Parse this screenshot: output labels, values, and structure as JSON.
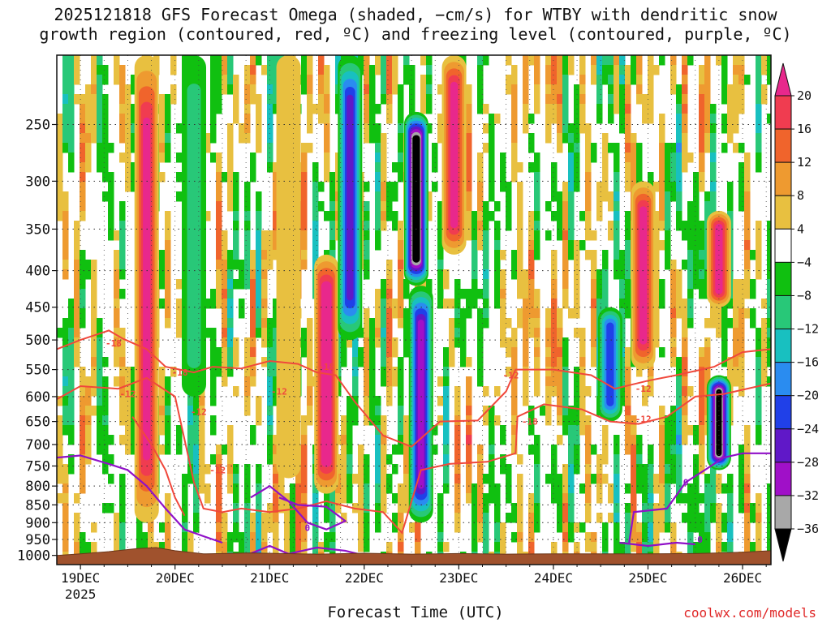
{
  "title_line1": "2025121818 GFS Forecast Omega (shaded, −cm/s) for WTBY with dendritic snow",
  "title_line2": "growth region (contoured, red, ºC) and freezing level (contoured, purple, ºC)",
  "credit": "coolwx.com/models",
  "chart_data": {
    "type": "heatmap",
    "title": "2025121818 GFS Forecast Omega (shaded, −cm/s) for WTBY with dendritic snow growth region (contoured, red, ºC) and freezing level (contoured, purple, ºC)",
    "xlabel": "Forecast Time (UTC)",
    "ylabel": "",
    "x_ticks": [
      "19DEC",
      "20DEC",
      "21DEC",
      "22DEC",
      "23DEC",
      "24DEC",
      "25DEC",
      "26DEC"
    ],
    "x_year": "2025",
    "x_range_days": [
      18.75,
      26.3
    ],
    "y_ticks": [
      "250",
      "300",
      "350",
      "400",
      "450",
      "500",
      "550",
      "600",
      "650",
      "700",
      "750",
      "800",
      "850",
      "900",
      "950",
      "1000"
    ],
    "y_range_hpa": [
      200,
      1030
    ],
    "colorbar": {
      "labels": [
        "20",
        "16",
        "12",
        "8",
        "4",
        "−4",
        "−8",
        "−12",
        "−16",
        "−20",
        "−24",
        "−28",
        "−32",
        "−36"
      ],
      "bins": [
        {
          "range": "above 20",
          "color": "#e8288c"
        },
        {
          "range": "16 to 20",
          "color": "#f03c50"
        },
        {
          "range": "12 to 16",
          "color": "#f0642c"
        },
        {
          "range": "8 to 12",
          "color": "#ee9a30"
        },
        {
          "range": "4 to 8",
          "color": "#e8c040"
        },
        {
          "range": "-4 to 4",
          "color": "#ffffff"
        },
        {
          "range": "-8 to -4",
          "color": "#10c010"
        },
        {
          "range": "-12 to -8",
          "color": "#28c878"
        },
        {
          "range": "-16 to -12",
          "color": "#18c0c0"
        },
        {
          "range": "-20 to -16",
          "color": "#2a8cf0"
        },
        {
          "range": "-24 to -20",
          "color": "#2040e8"
        },
        {
          "range": "-28 to -24",
          "color": "#6018c8"
        },
        {
          "range": "-32 to -28",
          "color": "#a010c8"
        },
        {
          "range": "-36 to -32",
          "color": "#a8a8a8"
        },
        {
          "range": "below -36",
          "color": "#000000"
        }
      ]
    },
    "omega_features": [
      {
        "day": 19.7,
        "p_top": 200,
        "p_bot": 900,
        "value": 22
      },
      {
        "day": 20.2,
        "p_top": 200,
        "p_bot": 600,
        "value": -10
      },
      {
        "day": 21.2,
        "p_top": 200,
        "p_bot": 780,
        "value": 6
      },
      {
        "day": 21.6,
        "p_top": 380,
        "p_bot": 820,
        "value": 24
      },
      {
        "day": 21.85,
        "p_top": 200,
        "p_bot": 500,
        "value": -26
      },
      {
        "day": 22.55,
        "p_top": 240,
        "p_bot": 420,
        "value": -40
      },
      {
        "day": 22.6,
        "p_top": 420,
        "p_bot": 900,
        "value": -28
      },
      {
        "day": 22.95,
        "p_top": 200,
        "p_bot": 380,
        "value": 22
      },
      {
        "day": 24.6,
        "p_top": 450,
        "p_bot": 650,
        "value": -22
      },
      {
        "day": 24.95,
        "p_top": 300,
        "p_bot": 550,
        "value": 20
      },
      {
        "day": 25.75,
        "p_top": 330,
        "p_bot": 450,
        "value": 22
      },
      {
        "day": 25.75,
        "p_top": 560,
        "p_bot": 760,
        "value": -36
      }
    ],
    "dgz_contour_labels": [
      "-18",
      "-12",
      "-18",
      "-12",
      "-12",
      "-12",
      "-18",
      "-12",
      "-18",
      "-12",
      "-12"
    ],
    "freezing_contour_labels": [
      "0",
      "0",
      "0"
    ],
    "dgz_line_color": "#f0483c",
    "freezing_line_color": "#9010c8",
    "terrain_color": "#a0522d"
  }
}
